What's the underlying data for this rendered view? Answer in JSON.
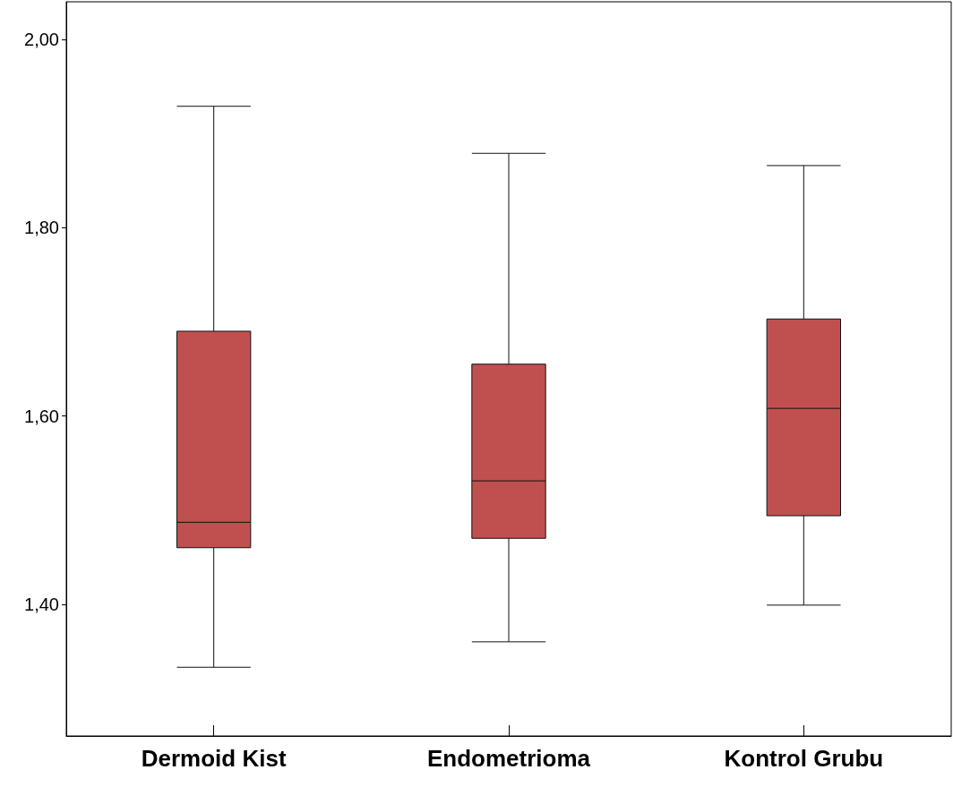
{
  "chart_data": {
    "type": "box",
    "categories": [
      "Dermoid Kist",
      "Endometrioma",
      "Kontrol Grubu"
    ],
    "boxes": [
      {
        "low": 1.333,
        "q1": 1.46,
        "median": 1.487,
        "q3": 1.69,
        "high": 1.929
      },
      {
        "low": 1.36,
        "q1": 1.47,
        "median": 1.531,
        "q3": 1.655,
        "high": 1.879
      },
      {
        "low": 1.399,
        "q1": 1.494,
        "median": 1.608,
        "q3": 1.703,
        "high": 1.866
      }
    ],
    "color": "#c0504f",
    "ylim": [
      1.26,
      2.04
    ],
    "yticks": [
      {
        "value": 1.4,
        "label": "1,40"
      },
      {
        "value": 1.6,
        "label": "1,60"
      },
      {
        "value": 1.8,
        "label": "1,80"
      },
      {
        "value": 2.0,
        "label": "2,00"
      }
    ],
    "grid": false
  }
}
